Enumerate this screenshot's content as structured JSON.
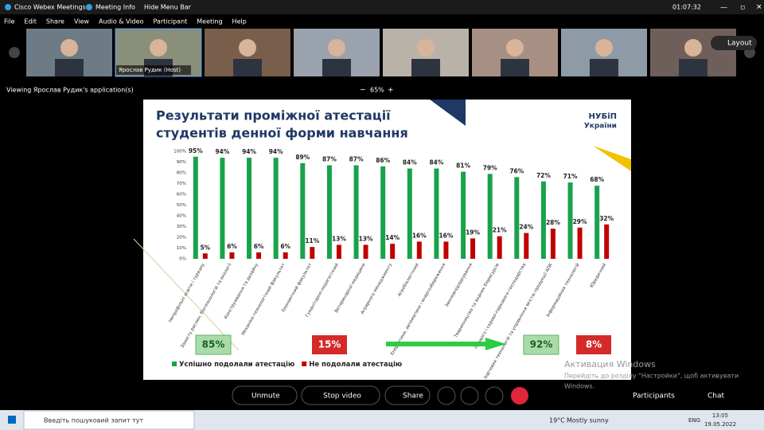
{
  "window": {
    "app_title": "Cisco Webex Meetings",
    "meeting_info": "Meeting Info",
    "hide_menu": "Hide Menu Bar",
    "clock": "01:07:32",
    "menu": [
      "File",
      "Edit",
      "Share",
      "View",
      "Audio & Video",
      "Participant",
      "Meeting",
      "Help"
    ]
  },
  "participants": {
    "host_label": "Ярослав Рудик (Host)",
    "layout": "Layout"
  },
  "share_bar": {
    "viewing": "Viewing Ярослав Рудик's application(s)",
    "zoom": "65%"
  },
  "slide": {
    "title_lines": [
      "Результати проміжної атестації",
      "студентів денної форми навчання"
    ],
    "logo": [
      "НУБіП",
      "України"
    ],
    "summary": [
      "85%",
      "15%",
      "92%",
      "8%"
    ]
  },
  "chart_data": {
    "type": "bar",
    "categories": [
      "Непрофільні освіти і туризму",
      "Захисту рослин, біотехнологій та екології",
      "Конструювання та дизайну",
      "Механіко-технологічний факультет",
      "Економічний факультет",
      "Гуманітарно-педагогічний",
      "Ветеринарної медицини",
      "Аграрного менеджменту",
      "Агробіологічний",
      "Енергетики, автоматики і енергозбереження",
      "Землевпорядкування",
      "Тваринництва та водних біоресурсів",
      "Лісового і садово-паркового господарства",
      "Харчових технологій та управління якістю продукції АПК",
      "Інформаційних технологій",
      "Юридичний"
    ],
    "series": [
      {
        "name": "Успішно подолали атестацію",
        "color": "#17a34a",
        "values": [
          95,
          94,
          94,
          94,
          89,
          87,
          87,
          86,
          84,
          84,
          81,
          79,
          76,
          72,
          71,
          68
        ],
        "value_labels": [
          "95%",
          "94%",
          "94%",
          "94%",
          "89%",
          "87%",
          "87%",
          "86%",
          "84%",
          "84%",
          "81%",
          "79%",
          "76%",
          "72%",
          "71%",
          "68%"
        ]
      },
      {
        "name": "Не подолали атестацію",
        "color": "#c00000",
        "values": [
          5,
          6,
          6,
          6,
          11,
          13,
          13,
          14,
          16,
          16,
          19,
          21,
          24,
          28,
          29,
          32
        ],
        "value_labels": [
          "5%",
          "6%",
          "6%",
          "6%",
          "11%",
          "13%",
          "13%",
          "14%",
          "16%",
          "16%",
          "19%",
          "21%",
          "24%",
          "28%",
          "29%",
          "32%"
        ]
      }
    ],
    "ylim": [
      0,
      100
    ],
    "yticks": [
      {
        "value": 0,
        "label": "0%"
      },
      {
        "value": 10,
        "label": "10%"
      },
      {
        "value": 20,
        "label": "20%"
      },
      {
        "value": 30,
        "label": "30%"
      },
      {
        "value": 40,
        "label": "40%"
      },
      {
        "value": 50,
        "label": "50%"
      },
      {
        "value": 60,
        "label": "60%"
      },
      {
        "value": 70,
        "label": "70%"
      },
      {
        "value": 80,
        "label": "80%"
      },
      {
        "value": 90,
        "label": "90%"
      },
      {
        "value": 100,
        "label": "100%"
      }
    ],
    "legend": "bottom-left"
  },
  "watermark": {
    "title": "Активация Windows",
    "text_lines": [
      "Перейдіть до розділу \"Настройки\", щоб активувати",
      "Windows."
    ]
  },
  "controls": {
    "unmute": "Unmute",
    "video": "Stop video",
    "share": "Share",
    "participants": "Participants",
    "chat": "Chat"
  },
  "taskbar": {
    "search": "Введіть пошуковий запит тут",
    "temperature": "19°C",
    "weather": "Mostly sunny",
    "lang": "ENG",
    "time": "13:05",
    "date": "19.05.2022"
  }
}
